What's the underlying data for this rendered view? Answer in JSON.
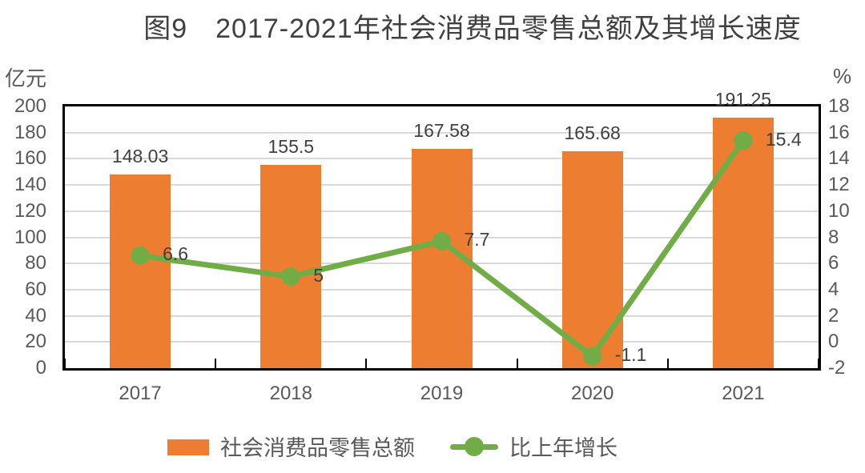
{
  "title": "图9　2017-2021年社会消费品零售总额及其增长速度",
  "left_axis_unit": "亿元",
  "right_axis_unit": "%",
  "colors": {
    "bar": "#ED7D31",
    "line": "#70AD47",
    "grid": "#d9d9d9",
    "axis_text": "#595959",
    "data_label_text": "#404040"
  },
  "chart_data": {
    "type": "bar",
    "subtype": "bar+line combo, dual axis",
    "title": "图9　2017-2021年社会消费品零售总额及其增长速度",
    "categories": [
      "2017",
      "2018",
      "2019",
      "2020",
      "2021"
    ],
    "series": [
      {
        "name": "社会消费品零售总额",
        "type": "bar",
        "axis": "left",
        "color": "#ED7D31",
        "values": [
          148.03,
          155.5,
          167.58,
          165.68,
          191.25
        ],
        "labels": [
          "148.03",
          "155.5",
          "167.58",
          "165.68",
          "191.25"
        ]
      },
      {
        "name": "比上年增长",
        "type": "line",
        "axis": "right",
        "color": "#70AD47",
        "values": [
          6.6,
          5,
          7.7,
          -1.1,
          15.4
        ],
        "labels": [
          "6.6",
          "5",
          "7.7",
          "-1.1",
          "15.4"
        ]
      }
    ],
    "left_axis": {
      "unit": "亿元",
      "min": 0,
      "max": 200,
      "step": 20,
      "ticks": [
        "200",
        "180",
        "160",
        "140",
        "120",
        "100",
        "80",
        "60",
        "40",
        "20",
        "0"
      ]
    },
    "right_axis": {
      "unit": "%",
      "min": -2,
      "max": 18,
      "step": 2,
      "ticks": [
        "18",
        "16",
        "14",
        "12",
        "10",
        "8",
        "6",
        "4",
        "2",
        "0",
        "-2"
      ]
    },
    "grid": true,
    "legend_position": "bottom"
  },
  "legend": {
    "bar_label": "社会消费品零售总额",
    "line_label": "比上年增长"
  }
}
